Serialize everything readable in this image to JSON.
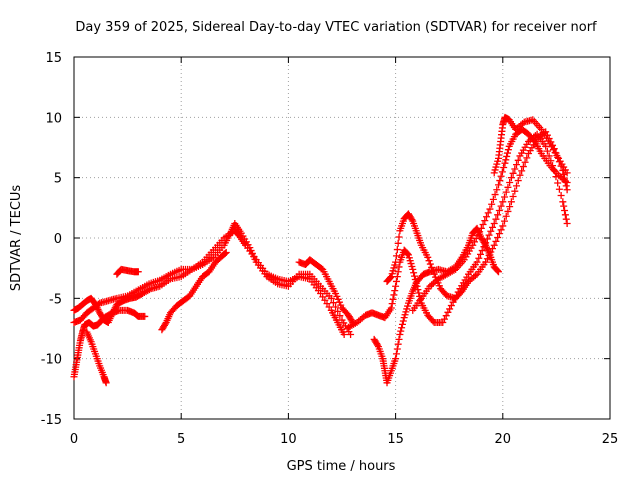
{
  "chart_data": {
    "type": "scatter",
    "title": "Day 359 of 2025, Sidereal Day-to-day VTEC variation (SDTVAR) for receiver norf",
    "xlabel": "GPS time / hours",
    "ylabel": "SDTVAR / TECUs",
    "xlim": [
      0,
      25
    ],
    "ylim": [
      -15,
      15
    ],
    "xticks": [
      0,
      5,
      10,
      15,
      20,
      25
    ],
    "yticks": [
      -15,
      -10,
      -5,
      0,
      5,
      10,
      15
    ],
    "grid": true,
    "marker": "+",
    "color": "#ff0000",
    "series": [
      {
        "name": "s1",
        "points": [
          [
            0.0,
            -11.5
          ],
          [
            0.1,
            -10.5
          ],
          [
            0.2,
            -9.5
          ],
          [
            0.3,
            -8.5
          ],
          [
            0.4,
            -7.8
          ],
          [
            0.5,
            -7.2
          ],
          [
            0.7,
            -7.0
          ],
          [
            0.9,
            -7.3
          ],
          [
            1.1,
            -7.2
          ],
          [
            1.3,
            -6.8
          ],
          [
            1.5,
            -6.5
          ],
          [
            1.8,
            -6.2
          ],
          [
            2.1,
            -6.0
          ],
          [
            2.5,
            -6.0
          ],
          [
            2.8,
            -6.2
          ],
          [
            3.0,
            -6.5
          ],
          [
            3.3,
            -6.5
          ]
        ]
      },
      {
        "name": "s2",
        "points": [
          [
            0.0,
            -6.0
          ],
          [
            0.2,
            -5.8
          ],
          [
            0.4,
            -5.5
          ],
          [
            0.6,
            -5.2
          ],
          [
            0.8,
            -5.0
          ],
          [
            1.0,
            -5.5
          ],
          [
            1.2,
            -6.2
          ],
          [
            1.4,
            -6.8
          ],
          [
            1.6,
            -7.0
          ],
          [
            1.8,
            -6.2
          ],
          [
            2.0,
            -5.5
          ],
          [
            2.3,
            -5.2
          ],
          [
            2.6,
            -5.0
          ],
          [
            2.9,
            -4.9
          ],
          [
            3.2,
            -4.6
          ],
          [
            3.6,
            -4.2
          ],
          [
            4.0,
            -4.0
          ],
          [
            4.5,
            -3.4
          ],
          [
            5.0,
            -3.2
          ],
          [
            5.5,
            -2.6
          ],
          [
            6.0,
            -2.0
          ],
          [
            6.5,
            -1.0
          ],
          [
            7.0,
            0.0
          ],
          [
            7.5,
            0.6
          ],
          [
            7.7,
            0.2
          ],
          [
            8.0,
            -0.6
          ],
          [
            8.5,
            -1.8
          ],
          [
            9.0,
            -3.0
          ],
          [
            9.5,
            -3.4
          ],
          [
            10.0,
            -3.6
          ],
          [
            10.5,
            -3.2
          ],
          [
            11.0,
            -3.4
          ],
          [
            11.5,
            -4.6
          ],
          [
            12.0,
            -6.0
          ],
          [
            12.3,
            -7.0
          ],
          [
            12.6,
            -8.0
          ]
        ]
      },
      {
        "name": "s3",
        "points": [
          [
            0.0,
            -7.0
          ],
          [
            0.3,
            -6.8
          ],
          [
            0.6,
            -6.2
          ],
          [
            0.9,
            -5.8
          ],
          [
            1.2,
            -5.4
          ],
          [
            1.6,
            -5.2
          ],
          [
            2.0,
            -5.0
          ],
          [
            2.5,
            -4.8
          ],
          [
            3.0,
            -4.3
          ],
          [
            3.5,
            -3.8
          ],
          [
            4.0,
            -3.5
          ],
          [
            4.5,
            -3.0
          ],
          [
            5.0,
            -2.6
          ],
          [
            5.5,
            -2.6
          ],
          [
            6.0,
            -2.2
          ],
          [
            6.5,
            -1.6
          ],
          [
            7.0,
            -0.6
          ],
          [
            7.3,
            0.4
          ],
          [
            7.5,
            1.2
          ],
          [
            7.8,
            0.4
          ],
          [
            8.2,
            -0.8
          ],
          [
            8.5,
            -2.0
          ],
          [
            9.0,
            -3.2
          ],
          [
            9.5,
            -3.8
          ],
          [
            10.0,
            -4.0
          ],
          [
            10.5,
            -3.0
          ],
          [
            11.0,
            -3.0
          ],
          [
            11.5,
            -4.0
          ],
          [
            12.0,
            -5.0
          ],
          [
            12.5,
            -6.8
          ],
          [
            12.9,
            -8.0
          ]
        ]
      },
      {
        "name": "s4",
        "points": [
          [
            0.6,
            -7.8
          ],
          [
            0.8,
            -8.6
          ],
          [
            1.0,
            -9.6
          ],
          [
            1.2,
            -10.6
          ],
          [
            1.4,
            -11.5
          ],
          [
            1.5,
            -12.0
          ]
        ]
      },
      {
        "name": "s5",
        "points": [
          [
            2.0,
            -3.0
          ],
          [
            2.2,
            -2.6
          ],
          [
            2.5,
            -2.7
          ],
          [
            2.8,
            -2.8
          ],
          [
            3.0,
            -2.8
          ]
        ]
      },
      {
        "name": "s6",
        "points": [
          [
            4.1,
            -7.6
          ],
          [
            4.3,
            -7.0
          ],
          [
            4.5,
            -6.2
          ],
          [
            4.8,
            -5.6
          ],
          [
            5.1,
            -5.2
          ],
          [
            5.4,
            -4.8
          ],
          [
            5.7,
            -4.0
          ],
          [
            6.0,
            -3.2
          ],
          [
            6.3,
            -2.8
          ],
          [
            6.6,
            -2.0
          ],
          [
            6.9,
            -1.5
          ],
          [
            7.1,
            -1.2
          ]
        ]
      },
      {
        "name": "s7",
        "points": [
          [
            10.5,
            -2.0
          ],
          [
            10.8,
            -2.2
          ],
          [
            11.0,
            -1.8
          ],
          [
            11.3,
            -2.2
          ],
          [
            11.6,
            -2.6
          ],
          [
            11.9,
            -3.6
          ],
          [
            12.2,
            -4.6
          ],
          [
            12.5,
            -5.8
          ],
          [
            12.8,
            -6.4
          ],
          [
            13.0,
            -7.0
          ]
        ]
      },
      {
        "name": "s8",
        "points": [
          [
            12.8,
            -7.4
          ],
          [
            13.2,
            -7.0
          ],
          [
            13.6,
            -6.4
          ],
          [
            13.9,
            -6.2
          ],
          [
            14.2,
            -6.4
          ],
          [
            14.5,
            -6.6
          ],
          [
            14.8,
            -5.8
          ],
          [
            15.0,
            -4.0
          ],
          [
            15.2,
            -2.0
          ],
          [
            15.4,
            -1.0
          ],
          [
            15.6,
            -1.4
          ],
          [
            15.8,
            -2.6
          ],
          [
            16.0,
            -4.0
          ],
          [
            16.2,
            -5.4
          ],
          [
            16.5,
            -6.4
          ],
          [
            16.8,
            -7.0
          ],
          [
            17.2,
            -7.0
          ],
          [
            17.6,
            -5.6
          ],
          [
            18.0,
            -4.2
          ],
          [
            18.4,
            -3.0
          ],
          [
            18.8,
            -2.0
          ],
          [
            19.2,
            -0.4
          ],
          [
            19.6,
            1.2
          ],
          [
            20.0,
            3.0
          ],
          [
            20.4,
            5.0
          ],
          [
            20.8,
            6.8
          ],
          [
            21.2,
            8.0
          ],
          [
            21.6,
            8.6
          ],
          [
            22.0,
            7.6
          ],
          [
            22.4,
            5.6
          ],
          [
            22.8,
            3.0
          ],
          [
            23.0,
            1.2
          ]
        ]
      },
      {
        "name": "s9",
        "points": [
          [
            14.0,
            -8.4
          ],
          [
            14.2,
            -9.0
          ],
          [
            14.4,
            -10.0
          ],
          [
            14.5,
            -11.0
          ],
          [
            14.6,
            -12.0
          ],
          [
            14.8,
            -11.0
          ],
          [
            15.0,
            -10.0
          ],
          [
            15.2,
            -8.0
          ],
          [
            15.4,
            -6.6
          ],
          [
            15.6,
            -5.4
          ],
          [
            15.8,
            -4.4
          ],
          [
            16.0,
            -3.6
          ],
          [
            16.3,
            -3.0
          ],
          [
            16.6,
            -2.8
          ],
          [
            17.0,
            -2.6
          ],
          [
            17.4,
            -2.8
          ],
          [
            17.8,
            -2.4
          ],
          [
            18.1,
            -1.6
          ],
          [
            18.4,
            -0.6
          ],
          [
            18.6,
            0.4
          ],
          [
            18.8,
            0.8
          ],
          [
            19.0,
            0.0
          ],
          [
            19.2,
            -0.6
          ],
          [
            19.4,
            -1.4
          ],
          [
            19.6,
            -2.4
          ],
          [
            19.8,
            -2.8
          ]
        ]
      },
      {
        "name": "s10",
        "points": [
          [
            14.6,
            -3.6
          ],
          [
            14.8,
            -3.2
          ],
          [
            15.0,
            -2.0
          ],
          [
            15.2,
            0.6
          ],
          [
            15.4,
            1.6
          ],
          [
            15.6,
            2.0
          ],
          [
            15.8,
            1.4
          ],
          [
            16.0,
            0.4
          ],
          [
            16.2,
            -0.6
          ],
          [
            16.5,
            -1.6
          ],
          [
            16.8,
            -3.0
          ],
          [
            17.1,
            -4.2
          ],
          [
            17.4,
            -4.8
          ],
          [
            17.8,
            -5.0
          ],
          [
            18.1,
            -4.4
          ],
          [
            18.4,
            -3.6
          ],
          [
            18.8,
            -3.0
          ],
          [
            19.2,
            -2.0
          ],
          [
            19.6,
            -0.6
          ],
          [
            20.0,
            1.0
          ],
          [
            20.4,
            3.0
          ],
          [
            20.8,
            5.2
          ],
          [
            21.2,
            7.0
          ],
          [
            21.6,
            8.2
          ],
          [
            22.0,
            8.8
          ],
          [
            22.4,
            7.4
          ],
          [
            22.8,
            5.6
          ],
          [
            23.0,
            4.0
          ]
        ]
      },
      {
        "name": "s11",
        "points": [
          [
            15.8,
            -6.0
          ],
          [
            16.2,
            -5.0
          ],
          [
            16.6,
            -4.0
          ],
          [
            17.0,
            -3.4
          ],
          [
            17.4,
            -3.0
          ],
          [
            17.8,
            -2.6
          ],
          [
            18.2,
            -1.8
          ],
          [
            18.6,
            -0.6
          ],
          [
            19.0,
            0.8
          ],
          [
            19.4,
            2.4
          ],
          [
            19.8,
            4.4
          ],
          [
            20.1,
            6.2
          ],
          [
            20.3,
            7.6
          ],
          [
            20.6,
            8.6
          ],
          [
            20.9,
            9.0
          ],
          [
            21.2,
            8.6
          ],
          [
            21.5,
            8.0
          ],
          [
            21.8,
            7.0
          ],
          [
            22.2,
            6.0
          ],
          [
            22.6,
            5.2
          ],
          [
            23.0,
            4.6
          ]
        ]
      },
      {
        "name": "s12",
        "points": [
          [
            19.6,
            5.4
          ],
          [
            19.8,
            6.6
          ],
          [
            19.9,
            8.0
          ],
          [
            20.0,
            9.4
          ],
          [
            20.1,
            10.0
          ],
          [
            20.3,
            9.8
          ],
          [
            20.6,
            9.0
          ],
          [
            21.0,
            9.6
          ],
          [
            21.4,
            9.8
          ],
          [
            21.8,
            9.0
          ],
          [
            22.2,
            7.8
          ],
          [
            22.6,
            6.6
          ],
          [
            23.0,
            5.4
          ]
        ]
      }
    ]
  }
}
